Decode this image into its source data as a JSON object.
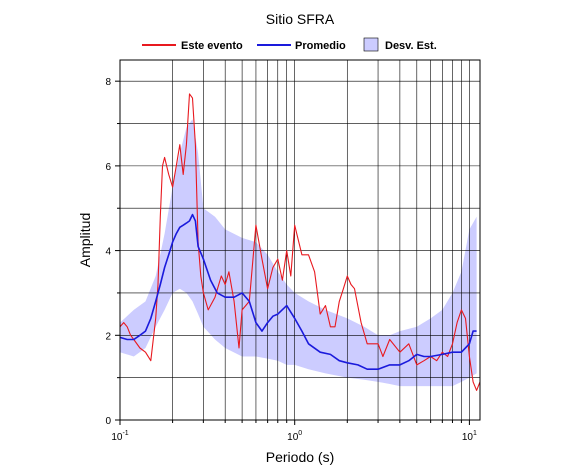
{
  "chart_data": {
    "type": "line",
    "title": "Sitio SFRA",
    "xlabel": "Periodo (s)",
    "ylabel": "Amplitud",
    "x_scale": "log",
    "xlim": [
      0.1,
      11.5
    ],
    "ylim": [
      0,
      8.5
    ],
    "grid": true,
    "legend_position": "top",
    "x_ticks": [
      {
        "base": "10",
        "exp": "-1",
        "value": 0.1
      },
      {
        "base": "10",
        "exp": "0",
        "value": 1
      },
      {
        "base": "10",
        "exp": "1",
        "value": 10
      }
    ],
    "y_ticks": [
      "0",
      "2",
      "4",
      "6",
      "8"
    ],
    "legend": [
      {
        "label": "Este evento",
        "kind": "line",
        "color": "#e8191f"
      },
      {
        "label": "Promedio",
        "kind": "line",
        "color": "#1a1adc"
      },
      {
        "label": "Desv. Est.",
        "kind": "band",
        "color": "#ccccff"
      }
    ],
    "band": {
      "name": "Desv. Est.",
      "color": "#ccccff",
      "x": [
        0.1,
        0.12,
        0.14,
        0.16,
        0.18,
        0.2,
        0.22,
        0.24,
        0.26,
        0.28,
        0.3,
        0.35,
        0.4,
        0.5,
        0.6,
        0.7,
        0.8,
        0.9,
        1.0,
        1.2,
        1.5,
        2.0,
        2.5,
        3.0,
        3.5,
        4.0,
        5.0,
        6.0,
        7.0,
        8.0,
        9.0,
        10.0,
        11.0
      ],
      "upper": [
        2.3,
        2.6,
        2.8,
        3.4,
        4.4,
        5.5,
        6.3,
        6.9,
        7.1,
        6.3,
        5.0,
        4.8,
        4.5,
        4.3,
        4.2,
        3.9,
        3.5,
        3.2,
        3.0,
        2.8,
        2.6,
        2.4,
        2.2,
        2.0,
        2.0,
        2.1,
        2.2,
        2.4,
        2.6,
        3.0,
        3.5,
        4.5,
        4.8
      ],
      "lower": [
        1.6,
        1.5,
        1.7,
        2.2,
        2.6,
        3.0,
        3.1,
        3.0,
        2.8,
        2.5,
        2.2,
        1.9,
        1.7,
        1.5,
        1.5,
        1.45,
        1.4,
        1.3,
        1.3,
        1.2,
        1.1,
        1.0,
        0.95,
        0.9,
        0.85,
        0.8,
        0.8,
        0.8,
        0.8,
        0.8,
        0.9,
        1.0,
        1.1
      ]
    },
    "series": [
      {
        "name": "Este evento",
        "color": "#e8191f",
        "x": [
          0.1,
          0.105,
          0.11,
          0.115,
          0.12,
          0.13,
          0.14,
          0.15,
          0.16,
          0.165,
          0.17,
          0.175,
          0.18,
          0.19,
          0.2,
          0.21,
          0.22,
          0.23,
          0.24,
          0.25,
          0.26,
          0.27,
          0.28,
          0.29,
          0.3,
          0.32,
          0.35,
          0.38,
          0.4,
          0.42,
          0.45,
          0.48,
          0.5,
          0.55,
          0.6,
          0.65,
          0.7,
          0.75,
          0.8,
          0.85,
          0.9,
          0.95,
          1.0,
          1.1,
          1.2,
          1.3,
          1.4,
          1.5,
          1.6,
          1.7,
          1.8,
          1.9,
          2.0,
          2.1,
          2.2,
          2.4,
          2.6,
          2.8,
          3.0,
          3.2,
          3.5,
          4.0,
          4.5,
          5.0,
          5.5,
          6.0,
          6.5,
          7.0,
          7.5,
          8.0,
          8.5,
          9.0,
          9.5,
          10.0,
          10.5,
          11.0,
          11.5
        ],
        "y": [
          2.2,
          2.3,
          2.2,
          2.0,
          1.9,
          1.7,
          1.6,
          1.4,
          2.4,
          3.2,
          4.8,
          6.0,
          6.2,
          5.8,
          5.5,
          6.0,
          6.5,
          5.8,
          6.5,
          7.7,
          7.6,
          6.5,
          4.2,
          3.4,
          3.0,
          2.6,
          2.9,
          3.4,
          3.2,
          3.5,
          2.8,
          1.7,
          2.6,
          2.8,
          4.6,
          3.8,
          3.1,
          3.6,
          3.8,
          3.3,
          4.0,
          3.4,
          4.6,
          3.9,
          3.9,
          3.5,
          2.5,
          2.7,
          2.2,
          2.2,
          2.8,
          3.1,
          3.4,
          3.2,
          3.1,
          2.3,
          1.8,
          1.8,
          1.8,
          1.5,
          1.9,
          1.6,
          1.8,
          1.3,
          1.4,
          1.5,
          1.4,
          1.6,
          1.5,
          1.8,
          2.3,
          2.6,
          2.4,
          1.5,
          0.9,
          0.7,
          0.9
        ]
      },
      {
        "name": "Promedio",
        "color": "#1a1adc",
        "x": [
          0.1,
          0.11,
          0.12,
          0.13,
          0.14,
          0.15,
          0.16,
          0.17,
          0.18,
          0.19,
          0.2,
          0.21,
          0.22,
          0.23,
          0.24,
          0.25,
          0.26,
          0.27,
          0.28,
          0.3,
          0.33,
          0.36,
          0.4,
          0.45,
          0.5,
          0.55,
          0.6,
          0.65,
          0.7,
          0.75,
          0.8,
          0.9,
          1.0,
          1.1,
          1.2,
          1.4,
          1.6,
          1.8,
          2.0,
          2.3,
          2.6,
          3.0,
          3.5,
          4.0,
          4.5,
          5.0,
          5.5,
          6.0,
          7.0,
          8.0,
          9.0,
          10.0,
          10.5,
          11.0
        ],
        "y": [
          1.95,
          1.9,
          1.9,
          2.0,
          2.1,
          2.4,
          2.8,
          3.2,
          3.6,
          3.9,
          4.2,
          4.4,
          4.55,
          4.6,
          4.65,
          4.7,
          4.85,
          4.7,
          4.1,
          3.8,
          3.3,
          3.0,
          2.9,
          2.9,
          3.0,
          2.8,
          2.3,
          2.1,
          2.3,
          2.45,
          2.5,
          2.7,
          2.4,
          2.1,
          1.8,
          1.6,
          1.55,
          1.4,
          1.35,
          1.3,
          1.2,
          1.2,
          1.3,
          1.3,
          1.4,
          1.55,
          1.5,
          1.5,
          1.55,
          1.6,
          1.6,
          1.8,
          2.1,
          2.1
        ]
      }
    ]
  }
}
